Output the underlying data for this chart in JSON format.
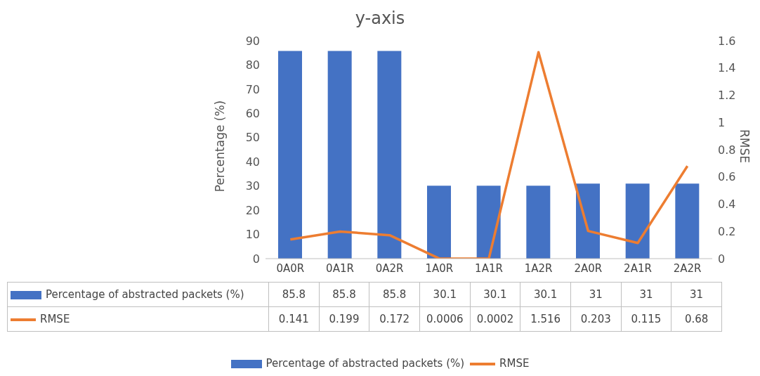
{
  "chart_data": {
    "type": "bar",
    "title": "y-axis",
    "ylabel": "Percentage (%)",
    "y2label": "RMSE",
    "categories": [
      "0A0R",
      "0A1R",
      "0A2R",
      "1A0R",
      "1A1R",
      "1A2R",
      "2A0R",
      "2A1R",
      "2A2R"
    ],
    "series": [
      {
        "name": "Percentage of abstracted packets (%)",
        "color": "#4472c4",
        "values": [
          85.8,
          85.8,
          85.8,
          30.1,
          30.1,
          30.1,
          31,
          31,
          31
        ]
      },
      {
        "name": "RMSE",
        "type": "line",
        "axis": "y2",
        "color": "#ed7d31",
        "values": [
          0.141,
          0.199,
          0.172,
          0.0006,
          0.0002,
          1.516,
          0.203,
          0.115,
          0.68
        ]
      }
    ],
    "ylim": [
      0,
      90
    ],
    "yticks": [
      0,
      10,
      20,
      30,
      40,
      50,
      60,
      70,
      80,
      90
    ],
    "y2lim": [
      0,
      1.6
    ],
    "y2ticks": [
      0,
      0.2,
      0.4,
      0.6,
      0.8,
      1,
      1.2,
      1.4,
      1.6
    ],
    "data_labels": true,
    "legend": "bottom"
  }
}
